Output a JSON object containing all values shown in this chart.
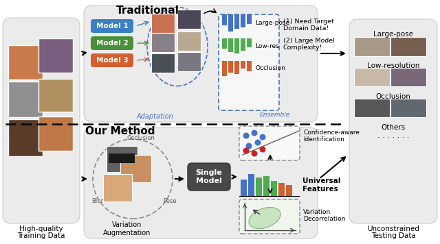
{
  "title": "Traditional",
  "title2": "Our Method",
  "left_label1": "High-quality",
  "left_label2": "Training Data",
  "right_label1": "Unconstrained",
  "right_label2": "Testing Data",
  "model1_color": "#3a80c3",
  "model2_color": "#4a8f3a",
  "model3_color": "#d06030",
  "model1_text": "Model 1",
  "model2_text": "Model 2",
  "model3_text": "Model 3",
  "adaptation_text": "Adaptation",
  "ensemble_text": "Ensemble",
  "issues_text1": "(1) Need Target",
  "issues_text2": "Domain Data!",
  "issues_text3": "(2) Large Model",
  "issues_text4": "Complexity!",
  "large_pose_text": "Large-pose",
  "low_res_text": "Low-res",
  "occlusion_text": "Occlusion",
  "single_model_text": "Single\nModel",
  "variation_aug_text": "Variation\nAugmentation",
  "confidence_text1": "Confidence-aware",
  "confidence_text2": "Identification",
  "universal_text": "Universal\nFeatures",
  "variation_decor_text1": "Variation",
  "variation_decor_text2": "Decorrelation",
  "large_pose_right": "Large-pose",
  "low_resolution_right": "Low-resolution",
  "occlusion_right": "Occlusion",
  "others_right": "Others",
  "blur_text": "Blur",
  "pose_text": "Pose",
  "occlusion_circle_text": "Occlusion",
  "bar_blue": "#4472c4",
  "bar_green": "#4fac4f",
  "bar_orange": "#d06030",
  "panel_bg": "#ebebeb",
  "panel_ec": "#cccccc"
}
